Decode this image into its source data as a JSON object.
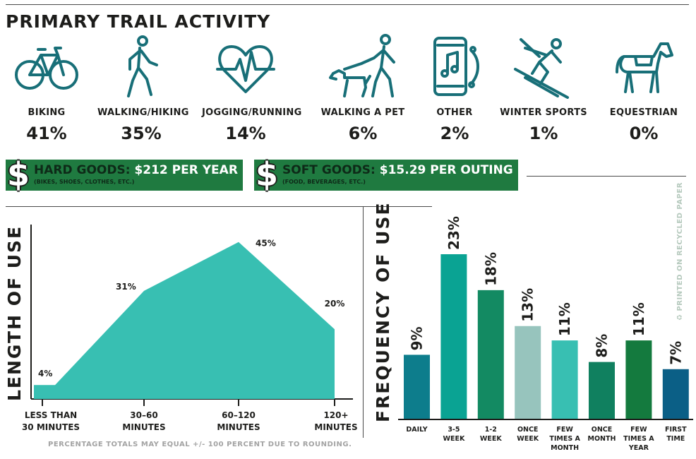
{
  "title": "PRIMARY TRAIL ACTIVITY",
  "colors": {
    "teal_area": "#38bfb2",
    "dark_green": "#1f7a40",
    "icon_teal": "#186f78"
  },
  "activities": [
    {
      "label": "BIKING",
      "pct": "41%",
      "icon": "bicycle-icon"
    },
    {
      "label": "WALKING/HIKING",
      "pct": "35%",
      "icon": "walking-person-icon"
    },
    {
      "label": "JOGGING/RUNNING",
      "pct": "14%",
      "icon": "heartbeat-icon"
    },
    {
      "label": "WALKING A PET",
      "pct": "6%",
      "icon": "dog-walker-icon"
    },
    {
      "label": "OTHER",
      "pct": "2%",
      "icon": "smartphone-music-icon"
    },
    {
      "label": "WINTER SPORTS",
      "pct": "1%",
      "icon": "skier-icon"
    },
    {
      "label": "EQUESTRIAN",
      "pct": "0%",
      "icon": "horse-icon"
    }
  ],
  "hard_goods": {
    "symbol": "$",
    "key": "HARD GOODS:",
    "value": "$212 PER YEAR",
    "sub": "(BIKES, SHOES, CLOTHES, ETC.)"
  },
  "soft_goods": {
    "symbol": "$",
    "key": "SOFT GOODS:",
    "value": "$15.29 PER OUTING",
    "sub": "(FOOD, BEVERAGES, ETC.)"
  },
  "footnote": "PERCENTAGE TOTALS MAY EQUAL +/- 100 PERCENT DUE TO ROUNDING.",
  "recycled": "PRINTED ON RECYCLED PAPER",
  "chart_data": [
    {
      "type": "area",
      "ylabel": "LENGTH OF USE",
      "categories": [
        "LESS THAN 30 MINUTES",
        "30–60 MINUTES",
        "60–120 MINUTES",
        "120+ MINUTES"
      ],
      "category_lines": [
        [
          "LESS THAN",
          "30 MINUTES"
        ],
        [
          "30–60",
          "MINUTES"
        ],
        [
          "60–120",
          "MINUTES"
        ],
        [
          "120+",
          "MINUTES"
        ]
      ],
      "values": [
        4,
        31,
        45,
        20
      ],
      "value_labels": [
        "4%",
        "31%",
        "45%",
        "20%"
      ],
      "ylim": [
        0,
        50
      ]
    },
    {
      "type": "bar",
      "ylabel": "FREQUENCY OF USE",
      "categories": [
        "DAILY",
        "3-5 WEEK",
        "1-2 WEEK",
        "ONCE WEEK",
        "FEW TIMES A MONTH",
        "ONCE MONTH",
        "FEW TIMES A YEAR",
        "FIRST TIME"
      ],
      "category_lines": [
        [
          "DAILY"
        ],
        [
          "3-5",
          "WEEK"
        ],
        [
          "1-2",
          "WEEK"
        ],
        [
          "ONCE",
          "WEEK"
        ],
        [
          "FEW",
          "TIMES A",
          "MONTH"
        ],
        [
          "ONCE",
          "MONTH"
        ],
        [
          "FEW",
          "TIMES A",
          "YEAR"
        ],
        [
          "FIRST",
          "TIME"
        ]
      ],
      "values": [
        9,
        23,
        18,
        13,
        11,
        8,
        11,
        7
      ],
      "value_labels": [
        "9%",
        "23%",
        "18%",
        "13%",
        "11%",
        "8%",
        "11%",
        "7%"
      ],
      "colors": [
        "#0d7d8c",
        "#0aa393",
        "#138a62",
        "#97c4bd",
        "#38bfb2",
        "#10805f",
        "#147a3e",
        "#0b5f86"
      ],
      "ylim": [
        0,
        25
      ]
    }
  ]
}
